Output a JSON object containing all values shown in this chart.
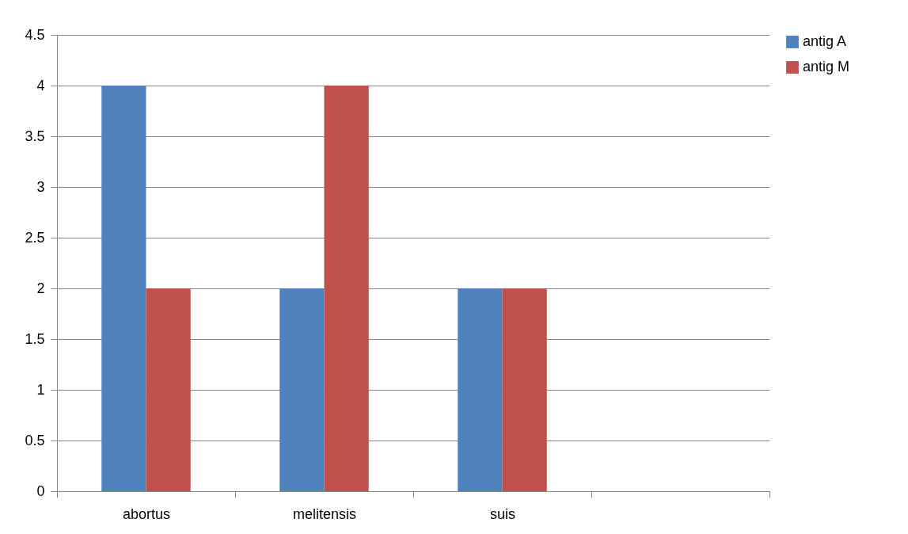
{
  "chart_data": {
    "type": "bar",
    "categories": [
      "abortus",
      "melitensis",
      "suis",
      null
    ],
    "series": [
      {
        "name": "antig A",
        "color": "#4f81bd",
        "values": [
          4,
          2,
          2,
          null
        ]
      },
      {
        "name": "antig M",
        "color": "#c0504d",
        "values": [
          2,
          4,
          2,
          null
        ]
      }
    ],
    "ylim": [
      0,
      4.5
    ],
    "yticks": [
      0,
      0.5,
      1,
      1.5,
      2,
      2.5,
      3,
      3.5,
      4,
      4.5
    ],
    "grid": "y",
    "legend": "right"
  }
}
